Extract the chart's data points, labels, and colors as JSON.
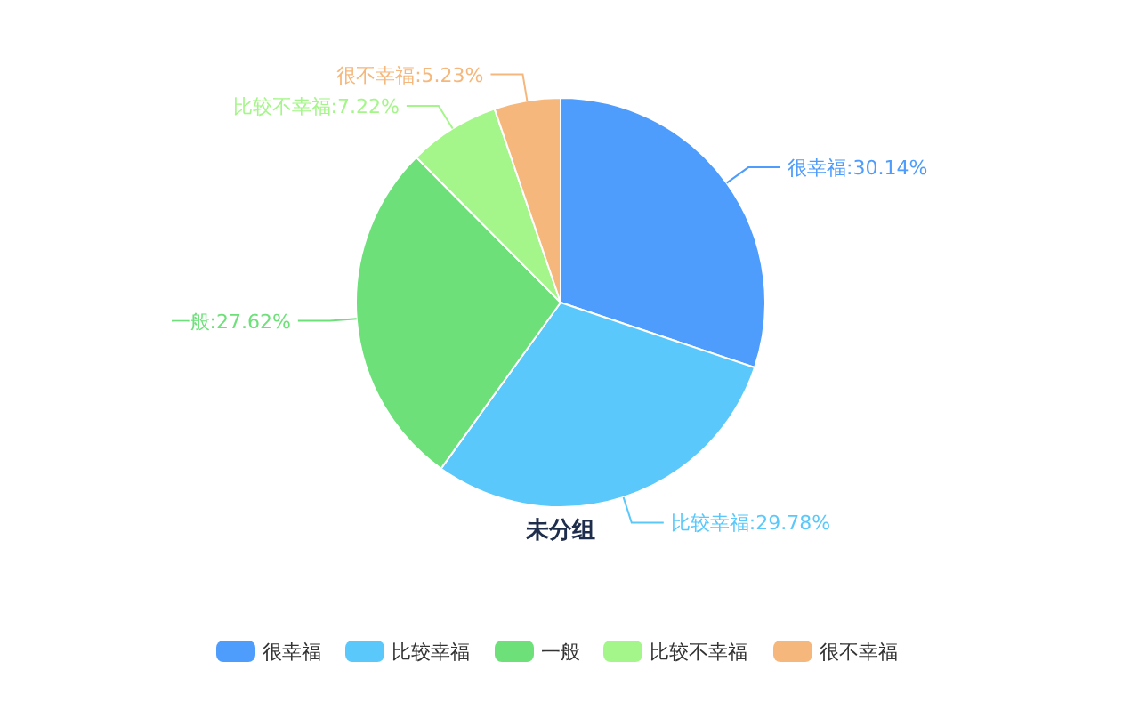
{
  "chart_data": {
    "type": "pie",
    "title": "未分组",
    "categories": [
      "很幸福",
      "比较幸福",
      "一般",
      "比较不幸福",
      "很不幸福"
    ],
    "values": [
      30.14,
      29.78,
      27.62,
      7.22,
      5.23
    ],
    "value_labels": [
      ":30.14%",
      ":29.78%",
      ":27.62%",
      ":7.22%",
      ":5.23%"
    ],
    "colors": [
      "#4e9cfc",
      "#5ac8fb",
      "#6de07a",
      "#a5f68a",
      "#f5b77b"
    ],
    "legend": "bottom"
  }
}
